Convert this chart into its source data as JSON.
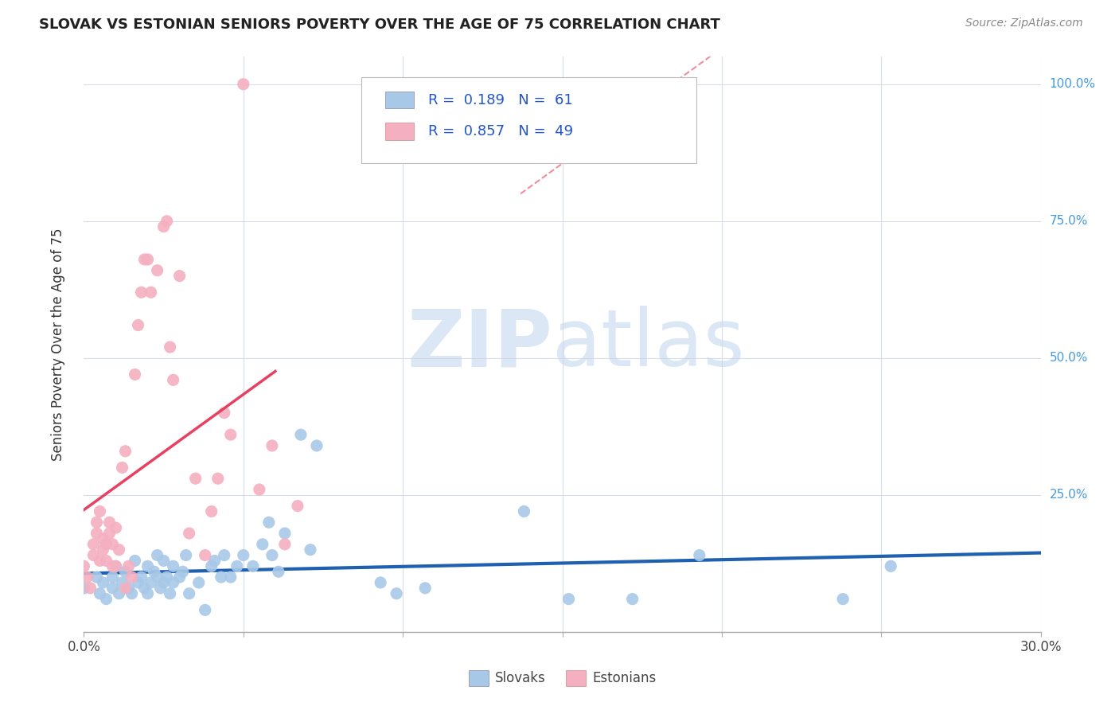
{
  "title": "SLOVAK VS ESTONIAN SENIORS POVERTY OVER THE AGE OF 75 CORRELATION CHART",
  "source": "Source: ZipAtlas.com",
  "ylabel": "Seniors Poverty Over the Age of 75",
  "slovak_color": "#a8c8e8",
  "estonian_color": "#f4b0c0",
  "slovak_line_color": "#2060b0",
  "estonian_line_color": "#e84060",
  "background_color": "#ffffff",
  "grid_color": "#d8dce8",
  "title_color": "#222222",
  "right_axis_color": "#4499dd",
  "xlim": [
    0.0,
    0.3
  ],
  "ylim": [
    0.0,
    1.05
  ],
  "slovak_points": [
    [
      0.0,
      0.08
    ],
    [
      0.004,
      0.1
    ],
    [
      0.005,
      0.07
    ],
    [
      0.006,
      0.09
    ],
    [
      0.007,
      0.06
    ],
    [
      0.009,
      0.08
    ],
    [
      0.009,
      0.1
    ],
    [
      0.01,
      0.12
    ],
    [
      0.011,
      0.07
    ],
    [
      0.012,
      0.09
    ],
    [
      0.013,
      0.11
    ],
    [
      0.014,
      0.08
    ],
    [
      0.015,
      0.07
    ],
    [
      0.016,
      0.13
    ],
    [
      0.017,
      0.09
    ],
    [
      0.018,
      0.1
    ],
    [
      0.019,
      0.08
    ],
    [
      0.02,
      0.07
    ],
    [
      0.02,
      0.12
    ],
    [
      0.021,
      0.09
    ],
    [
      0.022,
      0.11
    ],
    [
      0.023,
      0.1
    ],
    [
      0.023,
      0.14
    ],
    [
      0.024,
      0.08
    ],
    [
      0.025,
      0.13
    ],
    [
      0.025,
      0.09
    ],
    [
      0.026,
      0.1
    ],
    [
      0.027,
      0.07
    ],
    [
      0.028,
      0.12
    ],
    [
      0.028,
      0.09
    ],
    [
      0.03,
      0.1
    ],
    [
      0.031,
      0.11
    ],
    [
      0.032,
      0.14
    ],
    [
      0.033,
      0.07
    ],
    [
      0.036,
      0.09
    ],
    [
      0.038,
      0.04
    ],
    [
      0.04,
      0.12
    ],
    [
      0.041,
      0.13
    ],
    [
      0.043,
      0.1
    ],
    [
      0.044,
      0.14
    ],
    [
      0.046,
      0.1
    ],
    [
      0.048,
      0.12
    ],
    [
      0.05,
      0.14
    ],
    [
      0.053,
      0.12
    ],
    [
      0.056,
      0.16
    ],
    [
      0.058,
      0.2
    ],
    [
      0.059,
      0.14
    ],
    [
      0.061,
      0.11
    ],
    [
      0.063,
      0.18
    ],
    [
      0.068,
      0.36
    ],
    [
      0.071,
      0.15
    ],
    [
      0.073,
      0.34
    ],
    [
      0.093,
      0.09
    ],
    [
      0.098,
      0.07
    ],
    [
      0.107,
      0.08
    ],
    [
      0.138,
      0.22
    ],
    [
      0.152,
      0.06
    ],
    [
      0.172,
      0.06
    ],
    [
      0.193,
      0.14
    ],
    [
      0.238,
      0.06
    ],
    [
      0.253,
      0.12
    ]
  ],
  "estonian_points": [
    [
      0.0,
      0.12
    ],
    [
      0.001,
      0.1
    ],
    [
      0.002,
      0.08
    ],
    [
      0.003,
      0.16
    ],
    [
      0.003,
      0.14
    ],
    [
      0.004,
      0.18
    ],
    [
      0.004,
      0.2
    ],
    [
      0.005,
      0.22
    ],
    [
      0.005,
      0.13
    ],
    [
      0.006,
      0.15
    ],
    [
      0.006,
      0.17
    ],
    [
      0.007,
      0.16
    ],
    [
      0.007,
      0.13
    ],
    [
      0.008,
      0.18
    ],
    [
      0.008,
      0.2
    ],
    [
      0.009,
      0.12
    ],
    [
      0.009,
      0.16
    ],
    [
      0.01,
      0.19
    ],
    [
      0.01,
      0.12
    ],
    [
      0.011,
      0.15
    ],
    [
      0.012,
      0.3
    ],
    [
      0.013,
      0.33
    ],
    [
      0.013,
      0.08
    ],
    [
      0.014,
      0.12
    ],
    [
      0.015,
      0.1
    ],
    [
      0.016,
      0.47
    ],
    [
      0.017,
      0.56
    ],
    [
      0.018,
      0.62
    ],
    [
      0.019,
      0.68
    ],
    [
      0.02,
      0.68
    ],
    [
      0.021,
      0.62
    ],
    [
      0.023,
      0.66
    ],
    [
      0.025,
      0.74
    ],
    [
      0.026,
      0.75
    ],
    [
      0.027,
      0.52
    ],
    [
      0.028,
      0.46
    ],
    [
      0.03,
      0.65
    ],
    [
      0.033,
      0.18
    ],
    [
      0.035,
      0.28
    ],
    [
      0.038,
      0.14
    ],
    [
      0.04,
      0.22
    ],
    [
      0.042,
      0.28
    ],
    [
      0.044,
      0.4
    ],
    [
      0.046,
      0.36
    ],
    [
      0.05,
      1.0
    ],
    [
      0.055,
      0.26
    ],
    [
      0.059,
      0.34
    ],
    [
      0.063,
      0.16
    ],
    [
      0.067,
      0.23
    ]
  ],
  "estonian_line": [
    0.0,
    0.08,
    0.04,
    1.1
  ],
  "watermark_zip_color": "#c5d8f0",
  "watermark_atlas_color": "#c5d8f0"
}
